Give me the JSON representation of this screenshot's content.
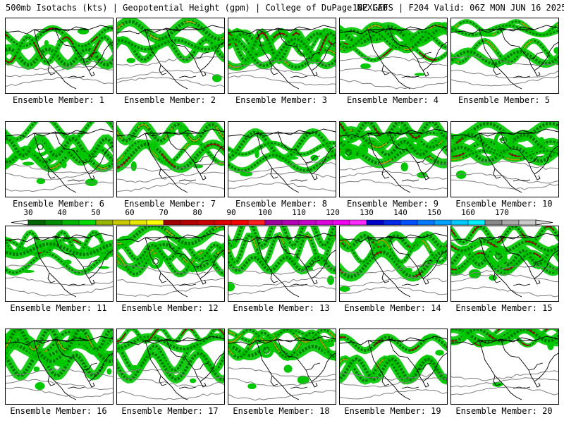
{
  "header": {
    "title_left": "500mb Isotachs (kts) | Geopotential Height (gpm) | College of DuPage NEXLAB",
    "title_right": "18Z GEFS | F204 Valid: 06Z MON JUN 16 2025"
  },
  "members": [
    {
      "label": "Ensemble Member: 1"
    },
    {
      "label": "Ensemble Member: 2"
    },
    {
      "label": "Ensemble Member: 3"
    },
    {
      "label": "Ensemble Member: 4"
    },
    {
      "label": "Ensemble Member: 5"
    },
    {
      "label": "Ensemble Member: 6"
    },
    {
      "label": "Ensemble Member: 7"
    },
    {
      "label": "Ensemble Member: 8"
    },
    {
      "label": "Ensemble Member: 9"
    },
    {
      "label": "Ensemble Member: 10"
    },
    {
      "label": "Ensemble Member: 11"
    },
    {
      "label": "Ensemble Member: 12"
    },
    {
      "label": "Ensemble Member: 13"
    },
    {
      "label": "Ensemble Member: 14"
    },
    {
      "label": "Ensemble Member: 15"
    },
    {
      "label": "Ensemble Member: 16"
    },
    {
      "label": "Ensemble Member: 17"
    },
    {
      "label": "Ensemble Member: 18"
    },
    {
      "label": "Ensemble Member: 19"
    },
    {
      "label": "Ensemble Member: 20"
    }
  ],
  "colorbar": {
    "unit": "kts",
    "ticks": [
      "30",
      "40",
      "50",
      "60",
      "70",
      "80",
      "90",
      "100",
      "110",
      "120",
      "130",
      "140",
      "150",
      "160",
      "170"
    ],
    "colors": [
      "#006400",
      "#008c00",
      "#00b400",
      "#00dc00",
      "#96b400",
      "#c8c800",
      "#e6e600",
      "#ffff00",
      "#a00000",
      "#b40000",
      "#c80000",
      "#dc0000",
      "#f00000",
      "#ff1e1e",
      "#a000a0",
      "#b400b4",
      "#c800c8",
      "#dc00dc",
      "#f000f0",
      "#ff28ff",
      "#0000c8",
      "#0028e6",
      "#0050ff",
      "#0078ff",
      "#00a0ff",
      "#00c8ff",
      "#00f0ff",
      "#888888",
      "#a8a8a8",
      "#c8c8c8"
    ],
    "low_color": "#ffffff",
    "high_color": "#dddddd"
  },
  "map_colors": {
    "jet_light": "#00c800",
    "jet_dark": "#007800",
    "jet_core": "#b4a000",
    "jet_max": "#a00000",
    "height_contour": "#808080",
    "coast": "#000000"
  }
}
